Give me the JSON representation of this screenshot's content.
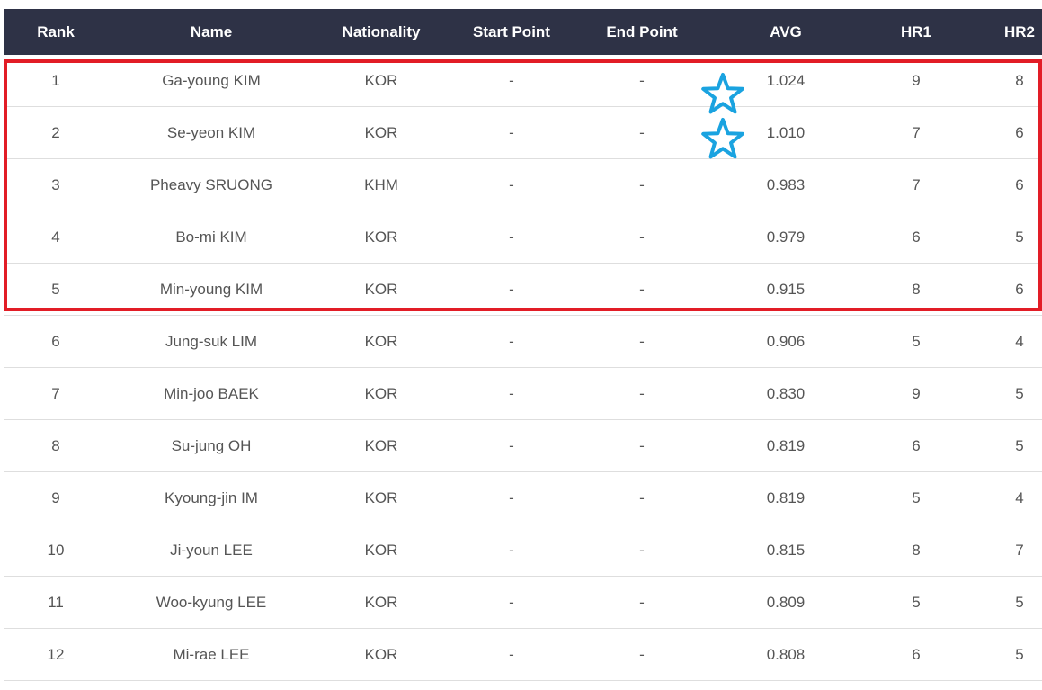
{
  "header": {
    "rank": "Rank",
    "name": "Name",
    "nationality": "Nationality",
    "start_point": "Start Point",
    "end_point": "End Point",
    "avg": "AVG",
    "hr1": "HR1",
    "hr2": "HR2"
  },
  "rows": [
    {
      "rank": "1",
      "name": "Ga-young KIM",
      "nationality": "KOR",
      "start": "-",
      "end": "-",
      "avg": "1.024",
      "hr1": "9",
      "hr2": "8"
    },
    {
      "rank": "2",
      "name": "Se-yeon KIM",
      "nationality": "KOR",
      "start": "-",
      "end": "-",
      "avg": "1.010",
      "hr1": "7",
      "hr2": "6"
    },
    {
      "rank": "3",
      "name": "Pheavy SRUONG",
      "nationality": "KHM",
      "start": "-",
      "end": "-",
      "avg": "0.983",
      "hr1": "7",
      "hr2": "6"
    },
    {
      "rank": "4",
      "name": "Bo-mi KIM",
      "nationality": "KOR",
      "start": "-",
      "end": "-",
      "avg": "0.979",
      "hr1": "6",
      "hr2": "5"
    },
    {
      "rank": "5",
      "name": "Min-young KIM",
      "nationality": "KOR",
      "start": "-",
      "end": "-",
      "avg": "0.915",
      "hr1": "8",
      "hr2": "6"
    },
    {
      "rank": "6",
      "name": "Jung-suk LIM",
      "nationality": "KOR",
      "start": "-",
      "end": "-",
      "avg": "0.906",
      "hr1": "5",
      "hr2": "4"
    },
    {
      "rank": "7",
      "name": "Min-joo BAEK",
      "nationality": "KOR",
      "start": "-",
      "end": "-",
      "avg": "0.830",
      "hr1": "9",
      "hr2": "5"
    },
    {
      "rank": "8",
      "name": "Su-jung OH",
      "nationality": "KOR",
      "start": "-",
      "end": "-",
      "avg": "0.819",
      "hr1": "6",
      "hr2": "5"
    },
    {
      "rank": "9",
      "name": "Kyoung-jin IM",
      "nationality": "KOR",
      "start": "-",
      "end": "-",
      "avg": "0.819",
      "hr1": "5",
      "hr2": "4"
    },
    {
      "rank": "10",
      "name": "Ji-youn LEE",
      "nationality": "KOR",
      "start": "-",
      "end": "-",
      "avg": "0.815",
      "hr1": "8",
      "hr2": "7"
    },
    {
      "rank": "11",
      "name": "Woo-kyung LEE",
      "nationality": "KOR",
      "start": "-",
      "end": "-",
      "avg": "0.809",
      "hr1": "5",
      "hr2": "5"
    },
    {
      "rank": "12",
      "name": "Mi-rae LEE",
      "nationality": "KOR",
      "start": "-",
      "end": "-",
      "avg": "0.808",
      "hr1": "6",
      "hr2": "5"
    }
  ],
  "annotations": {
    "highlight_color": "#e21d26",
    "star_color": "#1aa3e0",
    "highlighted_ranks": [
      "1",
      "2",
      "3",
      "4",
      "5"
    ],
    "starred_ranks": [
      "1",
      "2"
    ],
    "star_icon": "star-outline-icon"
  },
  "colors": {
    "header_bg": "#2e3246",
    "header_text": "#ffffff",
    "row_text": "#555555",
    "row_divider": "#dedede"
  }
}
